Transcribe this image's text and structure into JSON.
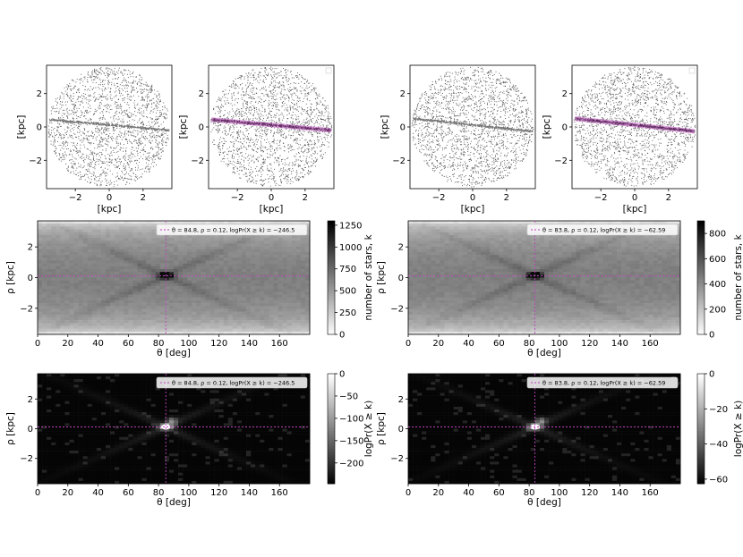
{
  "chart_data": [
    {
      "type": "scatter",
      "panel": "scatter-left-raw",
      "xlabel": "[kpc]",
      "ylabel": "[kpc]",
      "xticks": [
        "−2",
        "0",
        "2"
      ],
      "yticks": [
        "2",
        "0",
        "−2"
      ],
      "xlim": [
        -3.7,
        3.7
      ],
      "ylim": [
        -3.7,
        3.7
      ],
      "colors": {
        "points": "#555555"
      },
      "stream_line": {
        "theta_deg": 84.8,
        "rho_kpc": 0.12
      }
    },
    {
      "type": "scatter",
      "panel": "scatter-left-highlight",
      "xlabel": "[kpc]",
      "ylabel": "[kpc]",
      "xticks": [
        "−2",
        "0",
        "2"
      ],
      "yticks": [
        "2",
        "0",
        "−2"
      ],
      "xlim": [
        -3.7,
        3.7
      ],
      "ylim": [
        -3.7,
        3.7
      ],
      "colors": {
        "points": "#555555",
        "highlight": "#c050c0"
      },
      "stream_line": {
        "theta_deg": 84.8,
        "rho_kpc": 0.12
      }
    },
    {
      "type": "scatter",
      "panel": "scatter-right-raw",
      "xlabel": "[kpc]",
      "ylabel": "[kpc]",
      "xticks": [
        "−2",
        "0",
        "2"
      ],
      "yticks": [
        "2",
        "0",
        "−2"
      ],
      "xlim": [
        -3.7,
        3.7
      ],
      "ylim": [
        -3.7,
        3.7
      ],
      "colors": {
        "points": "#555555"
      },
      "stream_line": {
        "theta_deg": 83.8,
        "rho_kpc": 0.12
      }
    },
    {
      "type": "scatter",
      "panel": "scatter-right-highlight",
      "xlabel": "[kpc]",
      "ylabel": "[kpc]",
      "xticks": [
        "−2",
        "0",
        "2"
      ],
      "yticks": [
        "2",
        "0",
        "−2"
      ],
      "xlim": [
        -3.7,
        3.7
      ],
      "ylim": [
        -3.7,
        3.7
      ],
      "colors": {
        "points": "#555555",
        "highlight": "#c050c0"
      },
      "stream_line": {
        "theta_deg": 83.8,
        "rho_kpc": 0.12
      }
    },
    {
      "type": "heatmap",
      "panel": "hough-counts-left",
      "xlabel": "θ [deg]",
      "ylabel": "ρ [kpc]",
      "xticks": [
        "0",
        "20",
        "40",
        "60",
        "80",
        "100",
        "120",
        "140",
        "160"
      ],
      "yticks": [
        "2",
        "0",
        "−2"
      ],
      "xlim": [
        0,
        180
      ],
      "ylim": [
        -3.7,
        3.7
      ],
      "colorbar": {
        "label": "number of stars, k",
        "ticks": [
          "1250",
          "1000",
          "750",
          "500",
          "250",
          "0"
        ],
        "range": [
          0,
          1300
        ],
        "colormap": "Greys"
      },
      "best": {
        "theta": 84.8,
        "rho": 0.12
      },
      "legend": "θ = 84.8, ρ = 0.12, logPr(X ≥ k) = −246.5",
      "legend_position": "top-right"
    },
    {
      "type": "heatmap",
      "panel": "hough-counts-right",
      "xlabel": "θ [deg]",
      "ylabel": "ρ [kpc]",
      "xticks": [
        "0",
        "20",
        "40",
        "60",
        "80",
        "100",
        "120",
        "140",
        "160"
      ],
      "yticks": [
        "2",
        "0",
        "−2"
      ],
      "xlim": [
        0,
        180
      ],
      "ylim": [
        -3.7,
        3.7
      ],
      "colorbar": {
        "label": "number of stars, k",
        "ticks": [
          "800",
          "600",
          "400",
          "200",
          "0"
        ],
        "range": [
          0,
          900
        ],
        "colormap": "Greys"
      },
      "best": {
        "theta": 83.8,
        "rho": 0.12
      },
      "legend": "θ = 83.8, ρ = 0.12, logPr(X ≥ k) = −62.59",
      "legend_position": "top-right"
    },
    {
      "type": "heatmap",
      "panel": "hough-logpr-left",
      "xlabel": "θ [deg]",
      "ylabel": "ρ [kpc]",
      "xticks": [
        "0",
        "20",
        "40",
        "60",
        "80",
        "100",
        "120",
        "140",
        "160"
      ],
      "yticks": [
        "2",
        "0",
        "−2"
      ],
      "xlim": [
        0,
        180
      ],
      "ylim": [
        -3.7,
        3.7
      ],
      "colorbar": {
        "label": "logPr(X ≥ k)",
        "ticks": [
          "0",
          "−50",
          "−100",
          "−150",
          "−200"
        ],
        "range": [
          -246.5,
          0
        ],
        "colormap": "Greys_r"
      },
      "best": {
        "theta": 84.8,
        "rho": 0.12
      },
      "legend": "θ = 84.8, ρ = 0.12, logPr(X ≥ k) = −246.5",
      "legend_position": "top-right"
    },
    {
      "type": "heatmap",
      "panel": "hough-logpr-right",
      "xlabel": "θ [deg]",
      "ylabel": "ρ [kpc]",
      "xticks": [
        "0",
        "20",
        "40",
        "60",
        "80",
        "100",
        "120",
        "140",
        "160"
      ],
      "yticks": [
        "2",
        "0",
        "−2"
      ],
      "xlim": [
        0,
        180
      ],
      "ylim": [
        -3.7,
        3.7
      ],
      "colorbar": {
        "label": "logPr(X ≥ k)",
        "ticks": [
          "0",
          "−20",
          "−40",
          "−60"
        ],
        "range": [
          -62.59,
          0
        ],
        "colormap": "Greys_r"
      },
      "best": {
        "theta": 83.8,
        "rho": 0.12
      },
      "legend": "θ = 83.8, ρ = 0.12, logPr(X ≥ k) = −62.59",
      "legend_position": "top-right"
    }
  ]
}
